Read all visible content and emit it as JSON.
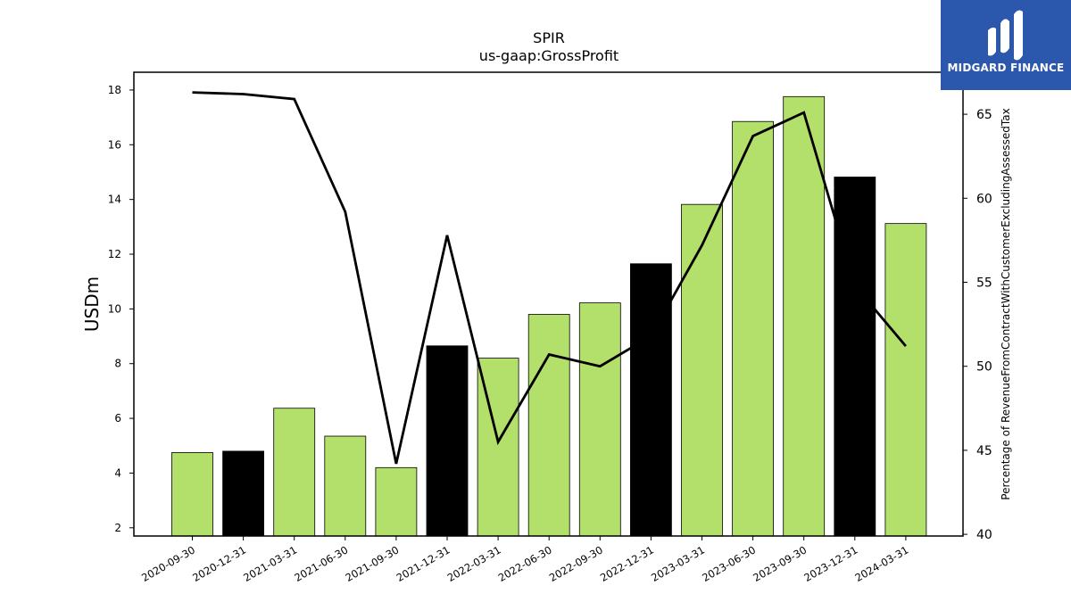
{
  "chart_data": {
    "type": "bar+line",
    "title": "SPIR",
    "subtitle": "us-gaap:GrossProfit",
    "ylabel": "USDm",
    "y2label": "Percentage of RevenueFromContractWithCustomerExcludingAssessedTax",
    "ylim": [
      1.7,
      18.65
    ],
    "y2lim": [
      39.9,
      67.5
    ],
    "yticks": [
      2,
      4,
      6,
      8,
      10,
      12,
      14,
      16,
      18
    ],
    "y2ticks": [
      40,
      45,
      50,
      55,
      60,
      65
    ],
    "categories": [
      "2020-09-30",
      "2020-12-31",
      "2021-03-31",
      "2021-06-30",
      "2021-09-30",
      "2021-12-31",
      "2022-03-31",
      "2022-06-30",
      "2022-09-30",
      "2022-12-31",
      "2023-03-31",
      "2023-06-30",
      "2023-09-30",
      "2023-12-31",
      "2024-03-31"
    ],
    "bars": {
      "values": [
        4.75,
        4.8,
        6.37,
        5.35,
        4.2,
        8.65,
        8.2,
        9.8,
        10.22,
        11.65,
        13.82,
        16.85,
        17.76,
        14.82,
        13.12
      ],
      "fiscal_year_end": [
        false,
        true,
        false,
        false,
        false,
        true,
        false,
        false,
        false,
        true,
        false,
        false,
        false,
        true,
        false
      ]
    },
    "line": {
      "values": [
        66.3,
        66.2,
        65.9,
        59.2,
        44.2,
        57.8,
        45.5,
        50.7,
        50.0,
        51.8,
        57.2,
        63.7,
        65.1,
        54.8,
        51.2
      ]
    },
    "colors": {
      "bar": "#b3df6b",
      "bar_highlight": "#000000",
      "line": "#000000"
    },
    "grid": false,
    "legend": "none"
  },
  "logo": {
    "text": "MIDGARD FINANCE",
    "background": "#2b57ad",
    "icon": "midgard-finance-logo-icon"
  }
}
